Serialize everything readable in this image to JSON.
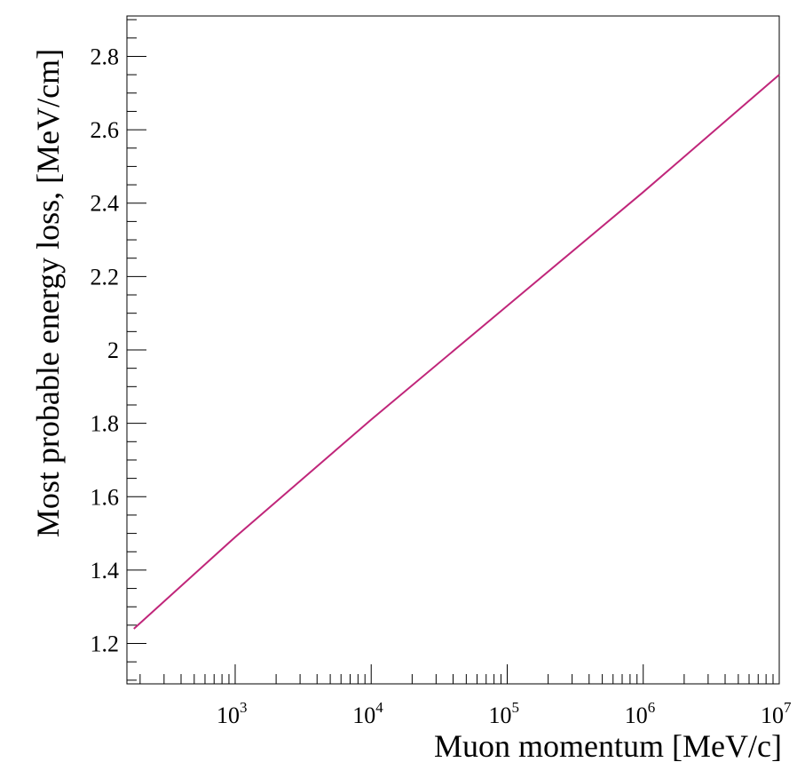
{
  "chart_data": {
    "type": "line",
    "xlabel": "Muon momentum [MeV/c]",
    "ylabel": "Most probable energy loss, [MeV/cm]",
    "x_scale": "log",
    "xlim": [
      160,
      10000000
    ],
    "ylim": [
      1.09,
      2.91
    ],
    "x_ticks": [
      {
        "base": "10",
        "exp": "3",
        "value": 1000
      },
      {
        "base": "10",
        "exp": "4",
        "value": 10000
      },
      {
        "base": "10",
        "exp": "5",
        "value": 100000
      },
      {
        "base": "10",
        "exp": "6",
        "value": 1000000
      },
      {
        "base": "10",
        "exp": "7",
        "value": 10000000
      }
    ],
    "y_ticks": [
      "1.2",
      "1.4",
      "1.6",
      "1.8",
      "2",
      "2.2",
      "2.4",
      "2.6",
      "2.8"
    ],
    "grid": false,
    "line_color": "#c0267a",
    "series": [
      {
        "x": [
          180,
          1000,
          10000,
          100000,
          1000000,
          10000000
        ],
        "y": [
          1.24,
          1.49,
          1.81,
          2.12,
          2.43,
          2.75
        ]
      }
    ]
  }
}
